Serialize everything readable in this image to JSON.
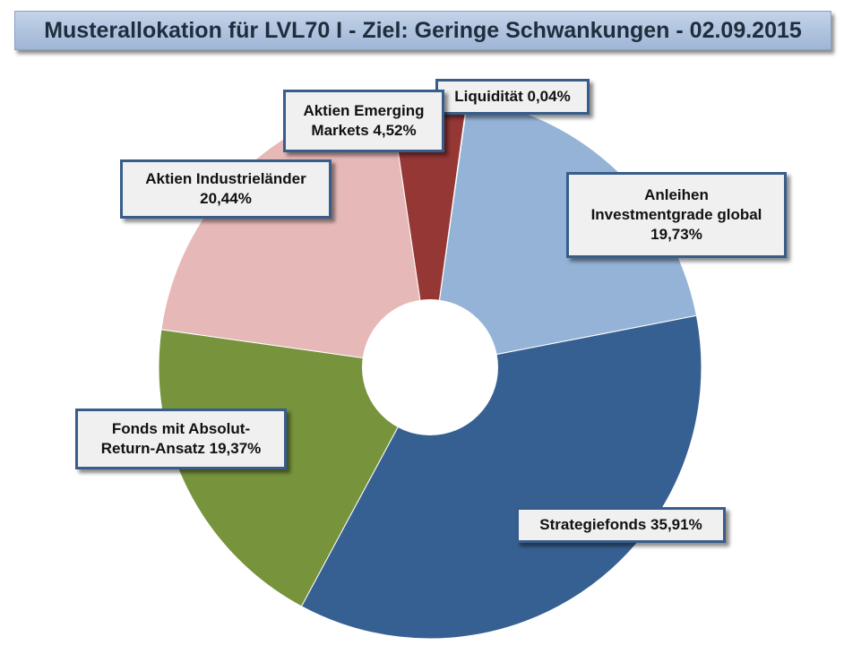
{
  "chart_data": {
    "type": "pie",
    "title": "Musterallokation für LVL70 I - Ziel: Geringe Schwankungen - 02.09.2015",
    "slices": [
      {
        "lines": [
          "Liquidität 0,04%"
        ],
        "value": 0.04,
        "color": "#953735"
      },
      {
        "lines": [
          "Anleihen",
          "Investmentgrade global",
          "19,73%"
        ],
        "value": 19.73,
        "color": "#95b3d7"
      },
      {
        "lines": [
          "Strategiefonds 35,91%"
        ],
        "value": 35.91,
        "color": "#376092"
      },
      {
        "lines": [
          "Fonds mit Absolut-",
          "Return-Ansatz 19,37%"
        ],
        "value": 19.37,
        "color": "#77933c"
      },
      {
        "lines": [
          "Aktien Industrieländer",
          "20,44%"
        ],
        "value": 20.44,
        "color": "#e6b9b8"
      },
      {
        "lines": [
          "Aktien Emerging",
          "Markets 4,52%"
        ],
        "value": 4.52,
        "color": "#953735"
      }
    ]
  }
}
